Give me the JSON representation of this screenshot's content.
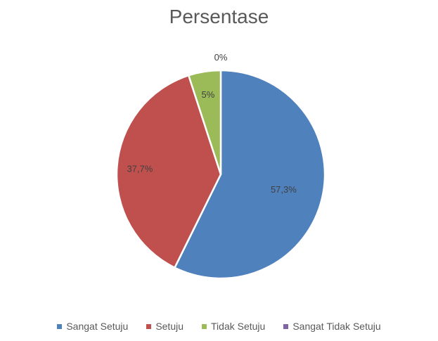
{
  "chart_data": {
    "type": "pie",
    "title": "Persentase",
    "categories": [
      "Sangat Setuju",
      "Setuju",
      "Tidak Setuju",
      "Sangat Tidak Setuju"
    ],
    "values": [
      57.3,
      37.7,
      5,
      0
    ],
    "data_labels": [
      "57,3%",
      "37,7%",
      "5%",
      "0%"
    ],
    "colors": [
      "#4F81BD",
      "#C0504D",
      "#9BBB59",
      "#8064A2"
    ],
    "legend_position": "bottom"
  }
}
